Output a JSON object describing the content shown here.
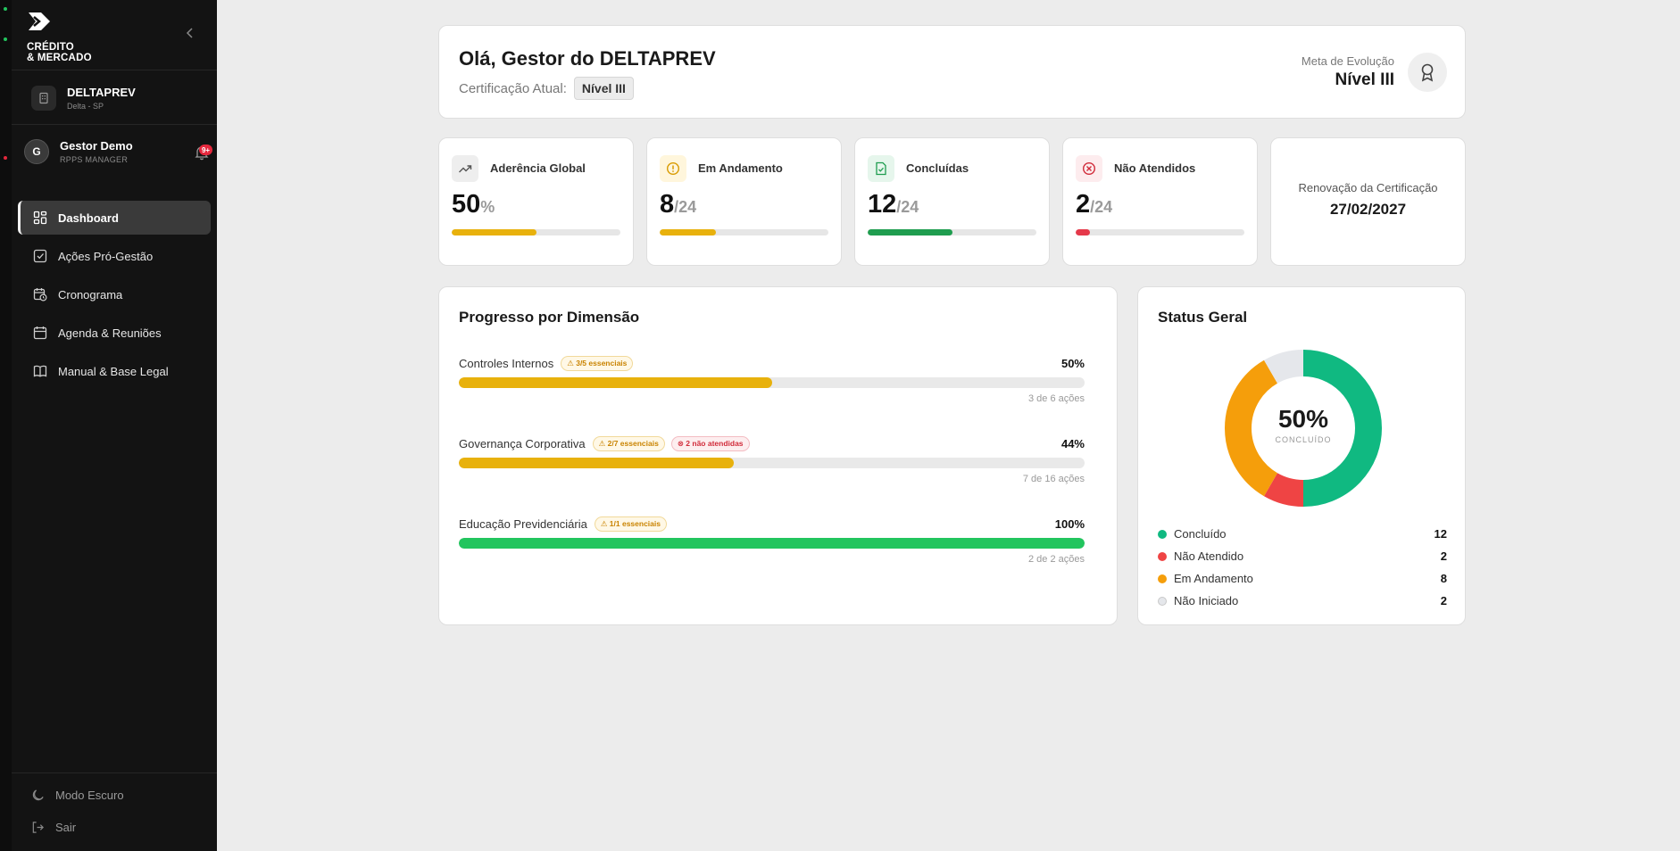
{
  "brand": {
    "name": "CRÉDITO\n& MERCADO"
  },
  "org": {
    "name": "DELTAPREV",
    "location": "Delta - SP"
  },
  "user": {
    "initial": "G",
    "name": "Gestor Demo",
    "role": "RPPS MANAGER",
    "notifications": "9+"
  },
  "nav": [
    {
      "label": "Dashboard",
      "icon": "dashboard-icon",
      "active": true
    },
    {
      "label": "Ações Pró-Gestão",
      "icon": "checkbox-icon"
    },
    {
      "label": "Cronograma",
      "icon": "calendar-clock-icon"
    },
    {
      "label": "Agenda & Reuniões",
      "icon": "calendar-icon"
    },
    {
      "label": "Manual & Base Legal",
      "icon": "book-icon"
    }
  ],
  "bottom": {
    "dark_mode": "Modo Escuro",
    "logout": "Sair"
  },
  "greeting": {
    "title": "Olá, Gestor do DELTAPREV",
    "cert_label": "Certificação Atual:",
    "cert_level": "Nível III",
    "goal_label": "Meta de Evolução",
    "goal_level": "Nível III"
  },
  "stats": [
    {
      "label": "Aderência Global",
      "value": "50",
      "suffix": "%",
      "progress": 0.5,
      "color": "#e8b10c",
      "icon": "trending-up-icon",
      "icon_bg": "#eeeeee",
      "icon_color": "#555555"
    },
    {
      "label": "Em Andamento",
      "value": "8",
      "suffix": "/24",
      "progress": 0.333,
      "color": "#e8b10c",
      "icon": "alert-circle-icon",
      "icon_bg": "#fff6dc",
      "icon_color": "#d99b00"
    },
    {
      "label": "Concluídas",
      "value": "12",
      "suffix": "/24",
      "progress": 0.5,
      "color": "#1f9d4f",
      "icon": "file-check-icon",
      "icon_bg": "#e6f6ec",
      "icon_color": "#1f9d4f"
    },
    {
      "label": "Não Atendidos",
      "value": "2",
      "suffix": "/24",
      "progress": 0.083,
      "color": "#e5394a",
      "icon": "x-circle-icon",
      "icon_bg": "#fdecee",
      "icon_color": "#d12b3a"
    }
  ],
  "renewal": {
    "label": "Renovação da Certificação",
    "date": "27/02/2027"
  },
  "progress": {
    "title": "Progresso por Dimensão",
    "dimensions": [
      {
        "name": "Controles Internos",
        "tags": [
          {
            "text": "⚠ 3/5 essenciais",
            "kind": "warn"
          }
        ],
        "pct": "50%",
        "fraction": 0.5,
        "count": "3 de 6 ações",
        "color": "#e8b10c"
      },
      {
        "name": "Governança Corporativa",
        "tags": [
          {
            "text": "⚠ 2/7 essenciais",
            "kind": "warn"
          },
          {
            "text": "⊗ 2 não atendidas",
            "kind": "bad"
          }
        ],
        "pct": "44%",
        "fraction": 0.44,
        "count": "7 de 16 ações",
        "color": "#e8b10c"
      },
      {
        "name": "Educação Previdenciária",
        "tags": [
          {
            "text": "⚠ 1/1 essenciais",
            "kind": "warn"
          }
        ],
        "pct": "100%",
        "fraction": 1.0,
        "count": "2 de 2 ações",
        "color": "#22c55e"
      }
    ]
  },
  "status": {
    "title": "Status Geral",
    "center_value": "50%",
    "center_caption": "CONCLUÍDO",
    "segments": [
      {
        "label": "Concluído",
        "value": 12,
        "color": "#10b981"
      },
      {
        "label": "Não Atendido",
        "value": 2,
        "color": "#ef4444"
      },
      {
        "label": "Em Andamento",
        "value": 8,
        "color": "#f59e0b"
      },
      {
        "label": "Não Iniciado",
        "value": 2,
        "color": "#e5e7eb"
      }
    ]
  }
}
